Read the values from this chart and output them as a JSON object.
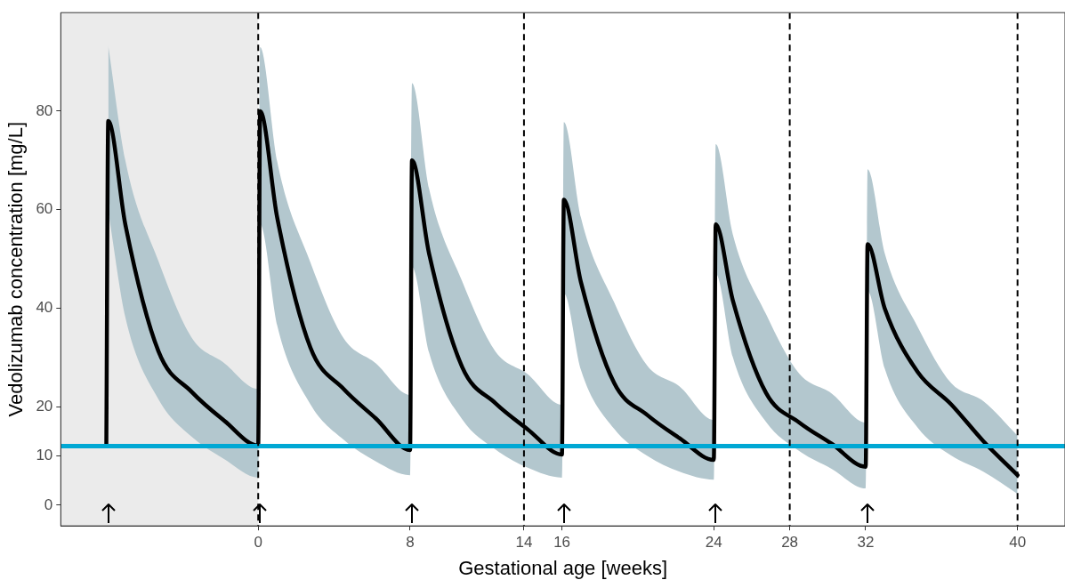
{
  "chart_data": {
    "type": "line",
    "xlabel": "Gestational age [weeks]",
    "ylabel": "Vedolizumab concentration [mg/L]",
    "xlim": [
      -10.4,
      42.5
    ],
    "ylim": [
      -4.2,
      100
    ],
    "xticks": [
      0,
      8,
      14,
      16,
      24,
      28,
      32,
      40
    ],
    "yticks": [
      0,
      10,
      20,
      40,
      60,
      80
    ],
    "grid": false,
    "legend": false,
    "marker": "none",
    "line_style": "solid",
    "series": [
      {
        "color": "#000000",
        "x": [
          -8,
          -7.9,
          -7,
          -5.25,
          -3.5,
          -1.8,
          0,
          0.1,
          1,
          2.75,
          4.5,
          6.2,
          8,
          8.1,
          9,
          10.75,
          12.5,
          14.2,
          16,
          16.1,
          17,
          18.75,
          20.5,
          22.2,
          24,
          24.1,
          25,
          26.75,
          28.5,
          30.2,
          32,
          32.1,
          33,
          34.75,
          36.5,
          38.2,
          40
        ],
        "values": [
          12.3,
          78,
          57,
          31.2,
          23,
          17.2,
          12.1,
          80,
          58.4,
          32,
          23.6,
          17.6,
          11.2,
          70,
          51.1,
          28,
          20.7,
          15.4,
          10.3,
          62,
          45.3,
          24.8,
          18.3,
          13.6,
          9.2,
          57,
          41.6,
          22.8,
          16.8,
          12.5,
          7.8,
          53,
          40,
          27,
          20.5,
          13,
          6.1
        ],
        "upper": [
          null,
          93.3,
          70,
          49.5,
          34,
          28.9,
          23.6,
          93,
          69.8,
          49.3,
          33.9,
          28.8,
          22.4,
          85.7,
          64.3,
          45.4,
          31.2,
          26.6,
          20.4,
          77.8,
          58.4,
          41.2,
          28.3,
          24.1,
          17.3,
          73.3,
          55,
          38.8,
          26.7,
          22.7,
          16.8,
          68.2,
          51.2,
          36.1,
          24.8,
          21.1,
          14.1
        ],
        "lower": [
          null,
          59.7,
          38.2,
          21.5,
          13.9,
          9.4,
          5.6,
          57,
          36.5,
          20.5,
          13.3,
          8.9,
          6.1,
          48.4,
          31,
          17.4,
          11.3,
          7.6,
          5.6,
          43,
          27.5,
          15.5,
          10,
          6.8,
          5.2,
          47,
          30.1,
          16.9,
          11,
          7.4,
          3.4,
          43.5,
          27.8,
          15.7,
          10.1,
          6.8,
          2.3
        ]
      }
    ],
    "ref_lines": [
      {
        "axis": "y",
        "value": 12,
        "color": "#00a8d4",
        "line_style": "solid"
      },
      {
        "axis": "x",
        "value": 0,
        "color": "#000000",
        "line_style": "dashed"
      },
      {
        "axis": "x",
        "value": 14,
        "color": "#000000",
        "line_style": "dashed"
      },
      {
        "axis": "x",
        "value": 28,
        "color": "#000000",
        "line_style": "dashed"
      },
      {
        "axis": "x",
        "value": 40,
        "color": "#000000",
        "line_style": "dashed"
      }
    ],
    "bands": [
      {
        "axis": "x",
        "from": -10.4,
        "to": 0,
        "color": "#ebebeb"
      }
    ]
  }
}
